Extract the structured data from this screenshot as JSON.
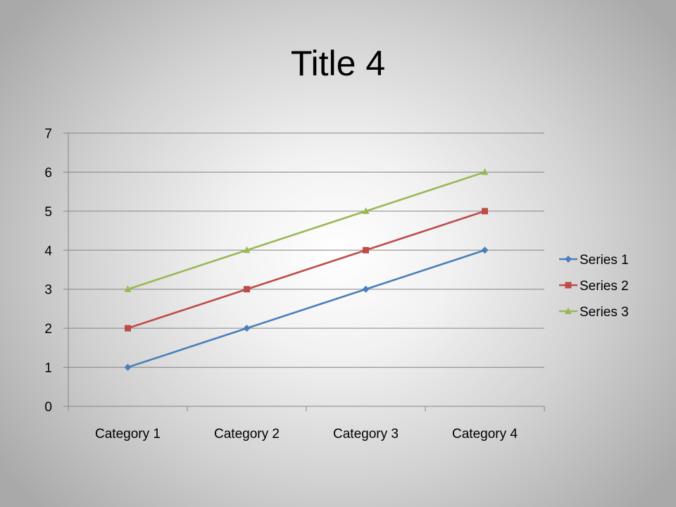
{
  "slide": {
    "title": "Title 4"
  },
  "chart_data": {
    "type": "line",
    "title": "Title 4",
    "categories": [
      "Category 1",
      "Category 2",
      "Category 3",
      "Category 4"
    ],
    "series": [
      {
        "name": "Series 1",
        "values": [
          1,
          2,
          3,
          4
        ],
        "color": "#4a7ebb",
        "marker": "diamond"
      },
      {
        "name": "Series 2",
        "values": [
          2,
          3,
          4,
          5
        ],
        "color": "#be4b48",
        "marker": "square"
      },
      {
        "name": "Series 3",
        "values": [
          3,
          4,
          5,
          6
        ],
        "color": "#98b954",
        "marker": "triangle"
      }
    ],
    "ylim": [
      0,
      7
    ],
    "yticks": [
      0,
      1,
      2,
      3,
      4,
      5,
      6,
      7
    ],
    "grid": true,
    "legend": "right",
    "gridline_color": "#868686",
    "xlabel": "",
    "ylabel": ""
  }
}
